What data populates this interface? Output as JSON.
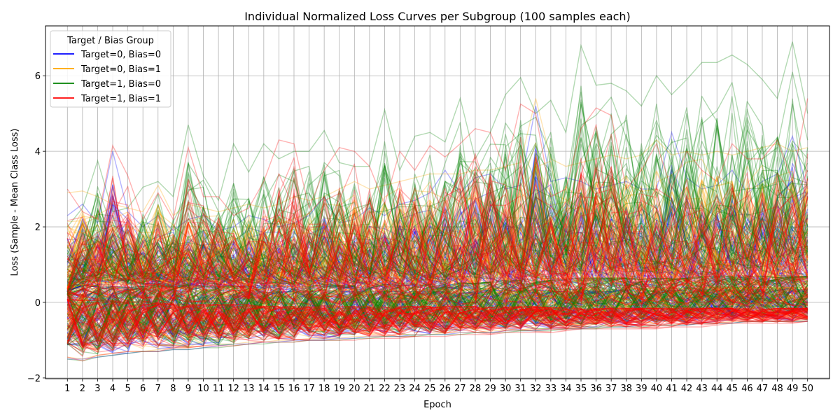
{
  "chart_data": {
    "type": "line",
    "title": "Individual Normalized Loss Curves per Subgroup (100 samples each)",
    "xlabel": "Epoch",
    "ylabel": "Loss (Sample - Mean Class Loss)",
    "x": [
      1,
      2,
      3,
      4,
      5,
      6,
      7,
      8,
      9,
      10,
      11,
      12,
      13,
      14,
      15,
      16,
      17,
      18,
      19,
      20,
      21,
      22,
      23,
      24,
      25,
      26,
      27,
      28,
      29,
      30,
      31,
      32,
      33,
      34,
      35,
      36,
      37,
      38,
      39,
      40,
      41,
      42,
      43,
      44,
      45,
      46,
      47,
      48,
      49,
      50
    ],
    "xlim": [
      -0.45,
      51.45
    ],
    "ylim": [
      -2.02,
      7.32
    ],
    "yticks": [
      -2,
      0,
      2,
      4,
      6
    ],
    "grid": true,
    "legend": {
      "title": "Target / Bias Group",
      "placement": "top-left"
    },
    "samples_per_series": 100,
    "series": [
      {
        "name": "Target=0, Bias=0",
        "color": "#0000ff",
        "envelope": {
          "min": [
            -1.5,
            -1.5,
            -1.45,
            -1.4,
            -1.35,
            -1.3,
            -1.3,
            -1.25,
            -1.25,
            -1.2,
            -1.15,
            -1.1,
            -1.1,
            -1.05,
            -1.05,
            -1.0,
            -1.0,
            -1.0,
            -0.95,
            -0.95,
            -0.9,
            -0.9,
            -0.9,
            -0.85,
            -0.85,
            -0.85,
            -0.8,
            -0.8,
            -0.8,
            -0.75,
            -0.75,
            -0.75,
            -0.7,
            -0.7,
            -0.7,
            -0.65,
            -0.65,
            -0.65,
            -0.6,
            -0.6,
            -0.6,
            -0.6,
            -0.55,
            -0.55,
            -0.55,
            -0.5,
            -0.5,
            -0.5,
            -0.5,
            -0.5
          ],
          "max": [
            2.3,
            2.6,
            2.1,
            4.0,
            2.4,
            2.0,
            2.3,
            1.9,
            2.2,
            2.3,
            1.9,
            2.0,
            2.3,
            2.2,
            2.0,
            2.1,
            2.3,
            2.8,
            2.1,
            2.2,
            2.5,
            2.3,
            2.6,
            2.7,
            2.9,
            3.5,
            2.9,
            3.3,
            3.4,
            3.0,
            3.1,
            5.2,
            3.2,
            3.3,
            3.2,
            3.0,
            3.1,
            3.2,
            3.0,
            3.0,
            4.5,
            3.3,
            3.0,
            3.1,
            3.5,
            2.9,
            3.2,
            3.4,
            4.4,
            3.0
          ],
          "typical": [
            0.4,
            0.5,
            0.4,
            0.45,
            0.4,
            0.35,
            0.45,
            0.4,
            0.35,
            0.4,
            0.35,
            0.3,
            0.35,
            0.3,
            0.3,
            0.3,
            0.3,
            0.35,
            0.3,
            0.3,
            0.3,
            0.3,
            0.3,
            0.3,
            0.3,
            0.3,
            0.3,
            0.3,
            0.35,
            0.3,
            0.3,
            0.35,
            0.3,
            0.3,
            0.35,
            0.3,
            0.3,
            0.35,
            0.3,
            0.35,
            0.35,
            0.3,
            0.35,
            0.35,
            0.35,
            0.35,
            0.35,
            0.35,
            0.4,
            0.35
          ]
        }
      },
      {
        "name": "Target=0, Bias=1",
        "color": "#ffa500",
        "envelope": {
          "min": [
            -1.45,
            -1.5,
            -1.4,
            -1.35,
            -1.3,
            -1.3,
            -1.25,
            -1.2,
            -1.2,
            -1.15,
            -1.1,
            -1.1,
            -1.05,
            -1.05,
            -1.0,
            -1.0,
            -0.95,
            -0.95,
            -0.95,
            -0.9,
            -0.9,
            -0.9,
            -0.85,
            -0.85,
            -0.85,
            -0.8,
            -0.8,
            -0.8,
            -0.75,
            -0.75,
            -0.75,
            -0.7,
            -0.7,
            -0.7,
            -0.65,
            -0.65,
            -0.65,
            -0.6,
            -0.6,
            -0.6,
            -0.6,
            -0.55,
            -0.55,
            -0.55,
            -0.5,
            -0.5,
            -0.5,
            -0.5,
            -0.5,
            -0.45
          ],
          "max": [
            2.9,
            2.95,
            2.8,
            2.6,
            2.5,
            2.4,
            3.1,
            2.3,
            2.6,
            2.5,
            2.4,
            2.5,
            2.6,
            2.5,
            2.6,
            2.8,
            2.7,
            2.8,
            3.0,
            3.2,
            3.0,
            3.1,
            3.2,
            3.3,
            3.4,
            3.4,
            3.4,
            3.5,
            3.5,
            3.6,
            3.7,
            5.4,
            3.8,
            3.6,
            3.7,
            3.8,
            3.9,
            3.8,
            3.9,
            4.3,
            3.9,
            4.0,
            3.9,
            4.0,
            3.9,
            4.0,
            4.1,
            4.2,
            4.0,
            4.1
          ],
          "typical": [
            0.5,
            0.5,
            0.45,
            0.5,
            0.45,
            0.4,
            0.45,
            0.4,
            0.4,
            0.4,
            0.35,
            0.35,
            0.35,
            0.35,
            0.35,
            0.35,
            0.35,
            0.35,
            0.35,
            0.35,
            0.35,
            0.35,
            0.35,
            0.35,
            0.35,
            0.35,
            0.35,
            0.35,
            0.4,
            0.35,
            0.35,
            0.4,
            0.35,
            0.35,
            0.4,
            0.35,
            0.35,
            0.4,
            0.35,
            0.4,
            0.4,
            0.35,
            0.4,
            0.4,
            0.4,
            0.4,
            0.4,
            0.4,
            0.4,
            0.4
          ]
        }
      },
      {
        "name": "Target=1, Bias=0",
        "color": "#008000",
        "envelope": {
          "min": [
            -1.5,
            -1.55,
            -1.45,
            -1.4,
            -1.35,
            -1.3,
            -1.3,
            -1.25,
            -1.25,
            -1.2,
            -1.2,
            -1.15,
            -1.1,
            -1.1,
            -1.05,
            -1.05,
            -1.0,
            -1.0,
            -1.0,
            -0.95,
            -0.95,
            -0.9,
            -0.9,
            -0.9,
            -0.85,
            -0.85,
            -0.85,
            -0.8,
            -0.8,
            -0.8,
            -0.75,
            -0.75,
            -0.75,
            -0.7,
            -0.7,
            -0.7,
            -0.65,
            -0.65,
            -0.65,
            -0.6,
            -0.6,
            -0.6,
            -0.55,
            -0.55,
            -0.55,
            -0.5,
            -0.5,
            -0.5,
            -0.5,
            -0.5
          ],
          "max": [
            2.0,
            2.5,
            3.75,
            2.4,
            2.5,
            3.05,
            3.2,
            2.8,
            4.7,
            3.35,
            2.7,
            4.2,
            3.45,
            4.2,
            3.8,
            4.0,
            4.0,
            4.55,
            3.7,
            3.6,
            3.6,
            5.1,
            3.5,
            4.4,
            4.5,
            4.25,
            5.4,
            3.8,
            4.5,
            5.5,
            5.95,
            5.0,
            5.35,
            4.5,
            6.8,
            5.75,
            5.8,
            5.6,
            5.2,
            6.0,
            5.5,
            5.9,
            6.35,
            6.35,
            6.55,
            6.3,
            5.9,
            5.4,
            6.9,
            5.0
          ],
          "typical": [
            0.3,
            0.4,
            0.5,
            0.45,
            0.4,
            0.45,
            0.5,
            0.4,
            0.5,
            0.45,
            0.4,
            0.45,
            0.45,
            0.45,
            0.45,
            0.45,
            0.45,
            0.5,
            0.45,
            0.45,
            0.45,
            0.5,
            0.45,
            0.5,
            0.5,
            0.5,
            0.55,
            0.5,
            0.55,
            0.6,
            0.6,
            0.6,
            0.6,
            0.6,
            0.65,
            0.65,
            0.65,
            0.65,
            0.6,
            0.65,
            0.65,
            0.65,
            0.7,
            0.7,
            0.7,
            0.7,
            0.7,
            0.65,
            0.7,
            0.7
          ]
        }
      },
      {
        "name": "Target=1, Bias=1",
        "color": "#ff0000",
        "envelope": {
          "min": [
            -1.45,
            -1.55,
            -1.4,
            -1.35,
            -1.3,
            -1.3,
            -1.3,
            -1.2,
            -1.2,
            -1.15,
            -1.15,
            -1.15,
            -1.1,
            -1.05,
            -1.05,
            -1.05,
            -1.0,
            -1.0,
            -1.0,
            -1.0,
            -0.95,
            -0.95,
            -0.95,
            -0.9,
            -0.9,
            -0.9,
            -0.85,
            -0.85,
            -0.85,
            -0.8,
            -0.8,
            -0.8,
            -0.8,
            -0.75,
            -0.7,
            -0.7,
            -0.7,
            -0.7,
            -0.7,
            -0.7,
            -0.65,
            -0.65,
            -0.65,
            -0.6,
            -0.55,
            -0.55,
            -0.55,
            -0.55,
            -0.55,
            -0.5
          ],
          "max": [
            3.0,
            2.4,
            2.2,
            4.15,
            3.35,
            2.2,
            2.9,
            2.2,
            4.1,
            2.8,
            2.8,
            2.3,
            2.5,
            3.2,
            4.3,
            4.2,
            2.5,
            3.5,
            4.1,
            4.0,
            3.6,
            2.6,
            4.0,
            3.5,
            4.15,
            3.85,
            4.2,
            4.6,
            4.5,
            3.5,
            5.25,
            5.0,
            2.8,
            3.0,
            4.6,
            5.15,
            4.95,
            3.0,
            3.5,
            4.2,
            3.0,
            4.0,
            3.5,
            3.2,
            4.2,
            3.8,
            3.8,
            4.3,
            3.2,
            5.4
          ],
          "typical": [
            0.1,
            0.05,
            0.05,
            0.05,
            0.0,
            0.0,
            0.0,
            -0.05,
            -0.05,
            -0.05,
            -0.05,
            -0.05,
            -0.05,
            -0.1,
            -0.1,
            -0.1,
            -0.1,
            -0.1,
            -0.1,
            -0.1,
            -0.1,
            -0.1,
            -0.1,
            -0.1,
            -0.1,
            -0.1,
            -0.1,
            -0.1,
            -0.1,
            -0.1,
            -0.1,
            -0.1,
            -0.15,
            -0.15,
            -0.15,
            -0.15,
            -0.15,
            -0.15,
            -0.15,
            -0.15,
            -0.15,
            -0.15,
            -0.15,
            -0.15,
            -0.15,
            -0.15,
            -0.15,
            -0.15,
            -0.15,
            -0.15
          ]
        }
      }
    ]
  }
}
